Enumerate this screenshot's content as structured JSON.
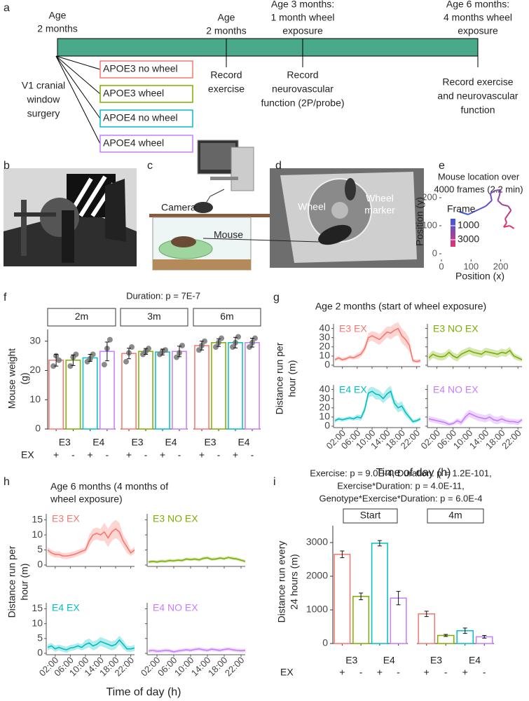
{
  "panel_labels": [
    "a",
    "b",
    "c",
    "d",
    "e",
    "f",
    "g",
    "h",
    "i"
  ],
  "timeline": {
    "bar_color": "#4aa98a",
    "top_labels": [
      [
        "Age",
        "2 months"
      ],
      [
        "Age",
        "2 months"
      ],
      [
        "Age 3 months:",
        "1 month wheel",
        "exposure"
      ],
      [
        "Age 6 months:",
        "4 months wheel",
        "exposure"
      ]
    ],
    "bottom_labels": [
      [
        "V1 cranial",
        "window",
        "surgery"
      ],
      [
        "Record",
        "exercise"
      ],
      [
        "Record",
        "neurovascular",
        "function (2P/probe)"
      ],
      [
        "Record exercise",
        "and neurovascular",
        "function"
      ]
    ],
    "groups": [
      {
        "label": "APOE3 no wheel",
        "color": "#f8766d"
      },
      {
        "label": "APOE3 wheel",
        "color": "#7cae00"
      },
      {
        "label": "APOE4 no wheel",
        "color": "#00bfc4"
      },
      {
        "label": "APOE4 wheel",
        "color": "#c77cff"
      }
    ]
  },
  "setup_labels": [
    "Camera",
    "Mouse"
  ],
  "video_labels": [
    [
      "Wheel"
    ],
    [
      "Wheel",
      "marker"
    ]
  ],
  "chart_data": [
    {
      "type": "path",
      "title": [
        "Mouse location over",
        "4000 frames (2.2 min)"
      ],
      "x_label": "Position (x)",
      "y_label": "Position (y)",
      "x": [
        60,
        90,
        110,
        130,
        150,
        170,
        165,
        180,
        200,
        195,
        190,
        205,
        225,
        235,
        225,
        215,
        220,
        210,
        230,
        245
      ],
      "y": [
        150,
        140,
        150,
        160,
        170,
        190,
        215,
        225,
        228,
        205,
        190,
        175,
        170,
        155,
        140,
        125,
        110,
        95,
        100,
        90
      ],
      "xlim": [
        0,
        260
      ],
      "ylim": [
        -20,
        250
      ],
      "xticks": [
        0,
        100,
        200
      ],
      "yticks": [
        0,
        100,
        200
      ],
      "colors": [
        "#3b5bdb",
        "#e8336d"
      ],
      "colorbar": {
        "title": "Frame",
        "lim": [
          0,
          4000
        ],
        "ticks": [
          1000,
          3000
        ]
      }
    },
    {
      "type": "bar",
      "title": "Duration: p = 7E-7",
      "y_label": [
        "Mouse weight",
        "(g)"
      ],
      "facets": [
        "2m",
        "3m",
        "6m"
      ],
      "genotypes": [
        "E3",
        "E4"
      ],
      "ex_title": "EX",
      "ex_levels": [
        "+",
        "-",
        "+",
        "-"
      ],
      "ylim": [
        0,
        34
      ],
      "yticks": [
        0,
        10,
        20,
        30
      ],
      "series": [
        {
          "color": "#f8766d",
          "values": [
            23.5,
            25.8,
            28.5
          ],
          "errors": [
            2.0,
            1.8,
            1.5
          ],
          "points": [
            [
              21.5,
              25,
              23.5
            ],
            [
              23,
              26,
              28
            ],
            [
              27,
              28.5,
              30
            ]
          ]
        },
        {
          "color": "#7cae00",
          "values": [
            23.5,
            26.5,
            29.5
          ],
          "errors": [
            1.8,
            1.0,
            1.3
          ],
          "points": [
            [
              21.5,
              24.5,
              25.5
            ],
            [
              25.5,
              26.5,
              27.5
            ],
            [
              28,
              29.5,
              31
            ]
          ]
        },
        {
          "color": "#00bfc4",
          "values": [
            24.3,
            26.3,
            29.5
          ],
          "errors": [
            1.2,
            1.0,
            1.8
          ],
          "points": [
            [
              23,
              24,
              25.5
            ],
            [
              25.5,
              26.5,
              27
            ],
            [
              28,
              29.5,
              31.5
            ]
          ]
        },
        {
          "color": "#c77cff",
          "values": [
            26.5,
            26.5,
            29.5
          ],
          "errors": [
            3.2,
            1.8,
            1.5
          ],
          "points": [
            [
              22,
              27.5,
              30.5
            ],
            [
              24.5,
              26,
              28.5
            ],
            [
              28,
              29.5,
              31
            ]
          ]
        }
      ]
    },
    {
      "type": "line",
      "title": [
        "Age 2 months (start of wheel exposure)"
      ],
      "x_label": "Time of day (h)",
      "y_label": [
        "Distance run per",
        "hour (m)"
      ],
      "x": [
        0,
        1,
        2,
        3,
        4,
        5,
        6,
        7,
        8,
        9,
        10,
        11,
        12,
        13,
        14,
        15,
        16,
        17,
        18,
        19,
        20,
        21,
        22,
        23
      ],
      "xlim": [
        0,
        23
      ],
      "xticks": [
        {
          "value": 2,
          "label": "02:00"
        },
        {
          "value": 6,
          "label": "06:00"
        },
        {
          "value": 10,
          "label": "10:00"
        },
        {
          "value": 14,
          "label": "14:00"
        },
        {
          "value": 18,
          "label": "18:00"
        },
        {
          "value": 22,
          "label": "22:00"
        }
      ],
      "ylim": [
        0,
        45
      ],
      "yticks": [
        0,
        10,
        20,
        30,
        40
      ],
      "series": [
        {
          "name": "E3 EX",
          "color": "#f8766d",
          "values": [
            6,
            8,
            6,
            7,
            9,
            8,
            10,
            12,
            18,
            30,
            32,
            30,
            28,
            32,
            36,
            35,
            38,
            40,
            32,
            28,
            22,
            5,
            4,
            5
          ],
          "errors": [
            2,
            2,
            2,
            2,
            2,
            2,
            3,
            3,
            4,
            5,
            5,
            6,
            6,
            6,
            6,
            7,
            7,
            7,
            8,
            8,
            7,
            2,
            2,
            2
          ]
        },
        {
          "name": "E3 NO EX",
          "color": "#7cae00",
          "values": [
            8,
            12,
            10,
            9,
            10,
            14,
            10,
            8,
            12,
            14,
            16,
            14,
            13,
            12,
            15,
            14,
            13,
            12,
            14,
            13,
            16,
            10,
            8,
            6
          ],
          "errors": [
            4,
            4,
            4,
            4,
            4,
            4,
            4,
            4,
            4,
            4,
            4,
            4,
            4,
            4,
            4,
            4,
            4,
            4,
            4,
            4,
            4,
            3,
            3,
            2
          ]
        },
        {
          "name": "E4 EX",
          "color": "#00bfc4",
          "values": [
            6,
            8,
            7,
            8,
            9,
            8,
            10,
            9,
            18,
            36,
            38,
            35,
            34,
            30,
            35,
            38,
            25,
            20,
            22,
            15,
            10,
            5,
            6,
            8
          ],
          "errors": [
            2,
            2,
            2,
            2,
            2,
            2,
            3,
            3,
            4,
            5,
            5,
            6,
            5,
            5,
            6,
            6,
            5,
            5,
            5,
            4,
            3,
            2,
            2,
            2
          ]
        },
        {
          "name": "E4 NO EX",
          "color": "#c77cff",
          "values": [
            8,
            7,
            6,
            5,
            4,
            2,
            3,
            6,
            4,
            10,
            14,
            12,
            10,
            9,
            8,
            10,
            7,
            6,
            8,
            6,
            5,
            5,
            4,
            7
          ],
          "errors": [
            3,
            3,
            3,
            3,
            3,
            2,
            2,
            3,
            3,
            4,
            4,
            4,
            4,
            4,
            4,
            4,
            4,
            4,
            4,
            3,
            3,
            3,
            3,
            2
          ]
        }
      ]
    },
    {
      "type": "line",
      "title": [
        "Age 6 months (4 months of",
        "wheel exposure)"
      ],
      "x_label": "Time of day (h)",
      "y_label": [
        "Distance run per",
        "hour (m)"
      ],
      "x": [
        0,
        1,
        2,
        3,
        4,
        5,
        6,
        7,
        8,
        9,
        10,
        11,
        12,
        13,
        14,
        15,
        16,
        17,
        18,
        19,
        20,
        21,
        22,
        23
      ],
      "xlim": [
        0,
        23
      ],
      "xticks": [
        {
          "value": 2,
          "label": "02:00"
        },
        {
          "value": 6,
          "label": "06:00"
        },
        {
          "value": 10,
          "label": "10:00"
        },
        {
          "value": 14,
          "label": "14:00"
        },
        {
          "value": 18,
          "label": "18:00"
        },
        {
          "value": 22,
          "label": "22:00"
        }
      ],
      "ylim": [
        0,
        17
      ],
      "yticks": [
        0,
        5,
        10,
        15
      ],
      "series": [
        {
          "name": "E3 EX",
          "color": "#f8766d",
          "values": [
            5,
            4,
            3.5,
            3.5,
            3,
            3,
            3.2,
            3.5,
            4,
            4.5,
            5,
            8,
            10,
            10.5,
            10,
            11,
            9,
            11,
            12,
            11,
            8,
            6,
            4,
            5
          ],
          "errors": [
            1,
            1,
            1,
            1,
            1,
            1,
            1,
            1,
            1,
            1,
            1,
            2,
            2,
            2,
            2,
            3,
            3,
            3,
            3,
            3,
            2,
            2,
            1,
            1
          ]
        },
        {
          "name": "E3 NO EX",
          "color": "#7cae00",
          "values": [
            1,
            1.2,
            1,
            1.3,
            1.2,
            1.5,
            1.4,
            1.6,
            1.5,
            2,
            1.8,
            2,
            1.7,
            2.2,
            2.4,
            1.9,
            2,
            2.3,
            2.1,
            2.5,
            2.2,
            2,
            1.6,
            1.2
          ],
          "errors": [
            0.5,
            0.5,
            0.5,
            0.5,
            0.5,
            0.5,
            0.5,
            0.5,
            0.5,
            0.5,
            0.5,
            0.5,
            0.5,
            0.5,
            0.5,
            0.5,
            0.5,
            0.5,
            0.5,
            0.5,
            0.5,
            0.5,
            0.5,
            0.5
          ]
        },
        {
          "name": "E4 EX",
          "color": "#00bfc4",
          "values": [
            2,
            2.5,
            1.5,
            2,
            1.5,
            1.2,
            1.8,
            2,
            2.5,
            2,
            3,
            3.5,
            2.5,
            3,
            4,
            3.5,
            3,
            2.5,
            3,
            4.5,
            3,
            1.5,
            1.5,
            1.8
          ],
          "errors": [
            1,
            1,
            1,
            1,
            1,
            1,
            1,
            1,
            1,
            1,
            1.5,
            1.5,
            1.5,
            1.5,
            1.5,
            1.5,
            1.5,
            1.5,
            1.5,
            1.5,
            1.5,
            1,
            1,
            1
          ]
        },
        {
          "name": "E4 NO EX",
          "color": "#c77cff",
          "values": [
            0.8,
            1,
            0.7,
            0.8,
            1,
            0.9,
            0.5,
            0.8,
            1,
            1.2,
            1,
            1.3,
            1.5,
            1.2,
            1,
            1.4,
            1.2,
            1,
            1.3,
            1.5,
            1.2,
            1,
            0.9,
            1
          ],
          "errors": [
            0.6,
            0.6,
            0.6,
            0.6,
            0.6,
            0.6,
            0.6,
            0.6,
            0.6,
            0.6,
            0.6,
            0.6,
            0.6,
            0.6,
            0.6,
            0.6,
            0.6,
            0.6,
            0.6,
            0.6,
            0.6,
            0.6,
            0.6,
            0.6
          ]
        }
      ]
    },
    {
      "type": "bar",
      "title": [
        "Exercise: p = 9.0E-4, Duration: p = 1.2E-101,",
        "Exercise*Duration: p = 4.0E-11,",
        "Genotype*Exercise*Duration: p = 6.0E-4"
      ],
      "y_label": [
        "Distance run every",
        "24 hours (m)"
      ],
      "facets": [
        "Start",
        "4m"
      ],
      "genotypes": [
        "E3",
        "E4"
      ],
      "ex_title": "EX",
      "ex_levels": [
        "+",
        "-",
        "+",
        "-"
      ],
      "ylim": [
        0,
        3500
      ],
      "yticks": [
        0,
        1000,
        2000,
        3000
      ],
      "series": [
        {
          "color": "#f8766d",
          "values": [
            2650,
            880
          ],
          "errors": [
            100,
            80
          ]
        },
        {
          "color": "#7cae00",
          "values": [
            1400,
            240
          ],
          "errors": [
            100,
            30
          ]
        },
        {
          "color": "#00bfc4",
          "values": [
            2980,
            380
          ],
          "errors": [
            80,
            80
          ]
        },
        {
          "color": "#c77cff",
          "values": [
            1350,
            200
          ],
          "errors": [
            200,
            40
          ]
        }
      ]
    }
  ]
}
